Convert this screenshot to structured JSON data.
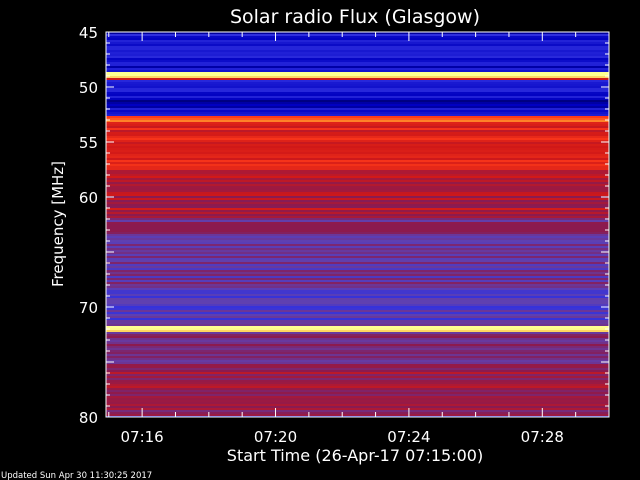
{
  "chart_data": {
    "type": "heatmap",
    "title": "Solar radio Flux (Glasgow)",
    "ylabel": "Frequency [MHz]",
    "xlabel": "Start Time (26-Apr-17 07:15:00)",
    "footer": "Updated Sun Apr 30 11:30:25 2017",
    "xlim": [
      "07:14:55",
      "07:30:00"
    ],
    "ylim": [
      45,
      80
    ],
    "y_reversed": true,
    "x_ticks": [
      "07:16",
      "07:20",
      "07:24",
      "07:28"
    ],
    "x_ticks_minutes": [
      16,
      20,
      24,
      28
    ],
    "y_ticks": [
      45,
      50,
      55,
      60,
      70,
      80
    ],
    "colormap": [
      "#000000",
      "#0000c0",
      "#3030e0",
      "#6040b0",
      "#8a1a50",
      "#d01818",
      "#ff3a1a",
      "#ffaa30",
      "#ffff90"
    ],
    "bands": [
      {
        "from": 45.0,
        "to": 48.6,
        "level": 0.18
      },
      {
        "from": 48.6,
        "to": 49.1,
        "level": 1.0
      },
      {
        "from": 49.1,
        "to": 49.4,
        "level": 0.62
      },
      {
        "from": 49.4,
        "to": 51.2,
        "level": 0.16
      },
      {
        "from": 51.2,
        "to": 52.6,
        "level": 0.14
      },
      {
        "from": 52.6,
        "to": 53.2,
        "level": 0.82
      },
      {
        "from": 53.2,
        "to": 57.5,
        "level": 0.66
      },
      {
        "from": 57.5,
        "to": 62.0,
        "level": 0.56
      },
      {
        "from": 62.0,
        "to": 64.5,
        "level": 0.44
      },
      {
        "from": 64.5,
        "to": 68.5,
        "level": 0.4
      },
      {
        "from": 68.5,
        "to": 71.8,
        "level": 0.34
      },
      {
        "from": 71.8,
        "to": 72.3,
        "level": 0.95
      },
      {
        "from": 72.3,
        "to": 76.0,
        "level": 0.44
      },
      {
        "from": 76.0,
        "to": 80.0,
        "level": 0.52
      }
    ]
  }
}
